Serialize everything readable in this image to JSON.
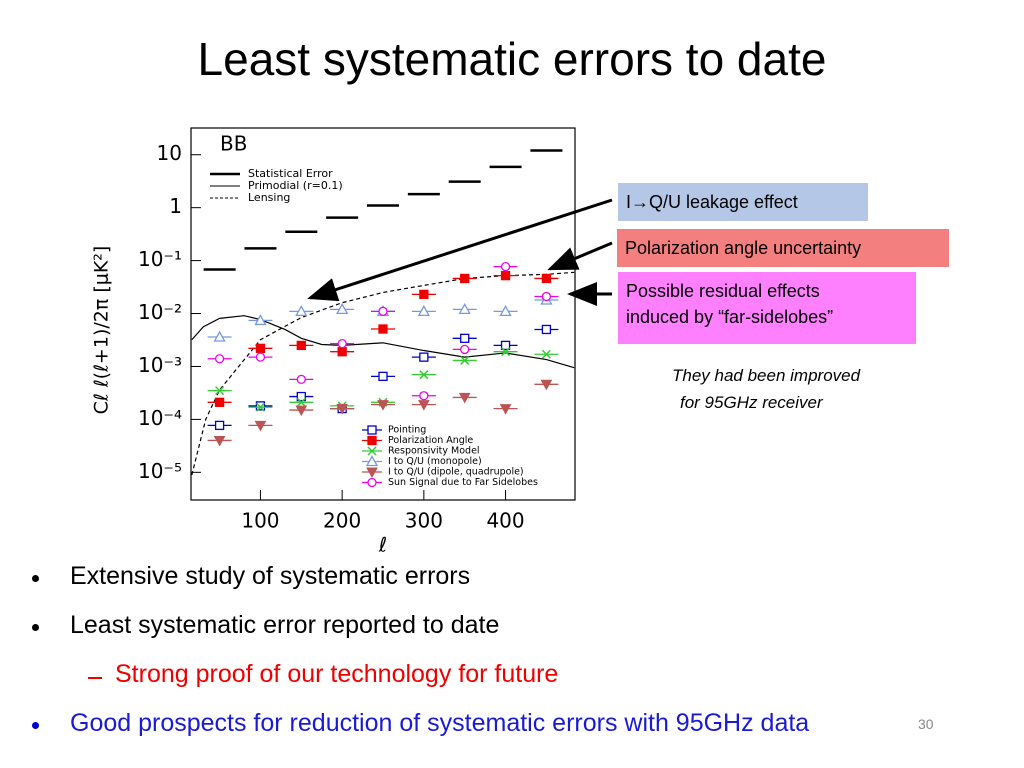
{
  "title": "Least systematic errors to date",
  "chart_data": {
    "type": "scatter",
    "panel_label": "BB",
    "x_label": "ℓ",
    "y_label": "Cℓ ℓ(ℓ+1)/2π [μK²]",
    "log_y": true,
    "xlim": [
      15,
      485
    ],
    "ylim": [
      3e-06,
      32
    ],
    "xticks": [
      100,
      200,
      300,
      400
    ],
    "yticks": [
      {
        "value": 10,
        "label": "10"
      },
      {
        "value": 1,
        "label": "1"
      },
      {
        "value": 0.1,
        "label": "10⁻¹"
      },
      {
        "value": 0.01,
        "label": "10⁻²"
      },
      {
        "value": 0.001,
        "label": "10⁻³"
      },
      {
        "value": 0.0001,
        "label": "10⁻⁴"
      },
      {
        "value": 1e-05,
        "label": "10⁻⁵"
      }
    ],
    "x": [
      50,
      100,
      150,
      200,
      250,
      300,
      350,
      400,
      450
    ],
    "series": [
      {
        "name": "Statistical Error",
        "color": "#000000",
        "marker": "hbar",
        "values": [
          0.068,
          0.17,
          0.35,
          0.65,
          1.1,
          1.8,
          3.1,
          5.9,
          12
        ]
      },
      {
        "name": "Primodial (r=0.1)",
        "color": "#000000",
        "marker": "line",
        "x": [
          16,
          30,
          50,
          80,
          100,
          130,
          150,
          175,
          200,
          250,
          300,
          350,
          400,
          450,
          484
        ],
        "values": [
          0.0032,
          0.0056,
          0.0081,
          0.0091,
          0.0077,
          0.005,
          0.0034,
          0.0026,
          0.0025,
          0.0028,
          0.002,
          0.0015,
          0.0018,
          0.00135,
          0.00095
        ]
      },
      {
        "name": "Lensing",
        "color": "#000000",
        "marker": "dashed-line",
        "x": [
          16,
          33,
          50,
          100,
          150,
          200,
          250,
          300,
          350,
          400,
          450,
          484
        ],
        "values": [
          8.9e-06,
          0.0001,
          0.00036,
          0.0032,
          0.0084,
          0.016,
          0.025,
          0.034,
          0.046,
          0.052,
          0.055,
          0.06
        ]
      },
      {
        "name": "Pointing",
        "color": "#0000cc",
        "marker": "square-open",
        "values": [
          7.7e-05,
          0.00018,
          0.00027,
          0.00016,
          0.00065,
          0.0015,
          0.0034,
          0.0025,
          0.005
        ]
      },
      {
        "name": "Polarization Angle",
        "color": "#ee0000",
        "marker": "square-filled",
        "values": [
          0.00021,
          0.0022,
          0.0025,
          0.0019,
          0.0051,
          0.023,
          0.046,
          0.052,
          0.046
        ]
      },
      {
        "name": "Responsivity Model",
        "color": "#33cc33",
        "marker": "x",
        "values": [
          0.00035,
          0.00017,
          0.00021,
          0.00018,
          0.00021,
          0.0007,
          0.0013,
          0.0019,
          0.0017
        ]
      },
      {
        "name": "I to Q/U (monopole)",
        "color": "#7799dd",
        "marker": "triangle-up-open",
        "values": [
          0.0036,
          0.0074,
          0.011,
          0.012,
          0.011,
          0.011,
          0.012,
          0.011,
          0.018
        ]
      },
      {
        "name": "I to Q/U (dipole, quadrupole)",
        "color": "#bb5555",
        "marker": "triangle-down-filled",
        "values": [
          4e-05,
          7.7e-05,
          0.00015,
          0.00016,
          0.00019,
          0.00019,
          0.00026,
          0.00016,
          0.00046
        ]
      },
      {
        "name": "Sun Signal due to Far Sidelobes",
        "color": "#ee00ee",
        "marker": "circle-open",
        "values": [
          0.0014,
          0.0015,
          0.00057,
          0.0027,
          0.011,
          0.00028,
          0.0021,
          0.077,
          0.021
        ]
      }
    ]
  },
  "callouts": [
    "I→Q/U leakage effect",
    "Polarization angle uncertainty",
    [
      "Possible residual effects",
      "induced by “far-sidelobes”"
    ]
  ],
  "note": [
    "They had been improved",
    "for 95GHz receiver"
  ],
  "bullets": [
    "Extensive study of systematic errors",
    "Least systematic error reported to date",
    "Strong proof of our technology for future",
    "Good prospects for reduction of systematic errors with 95GHz data"
  ],
  "page_number": "30"
}
